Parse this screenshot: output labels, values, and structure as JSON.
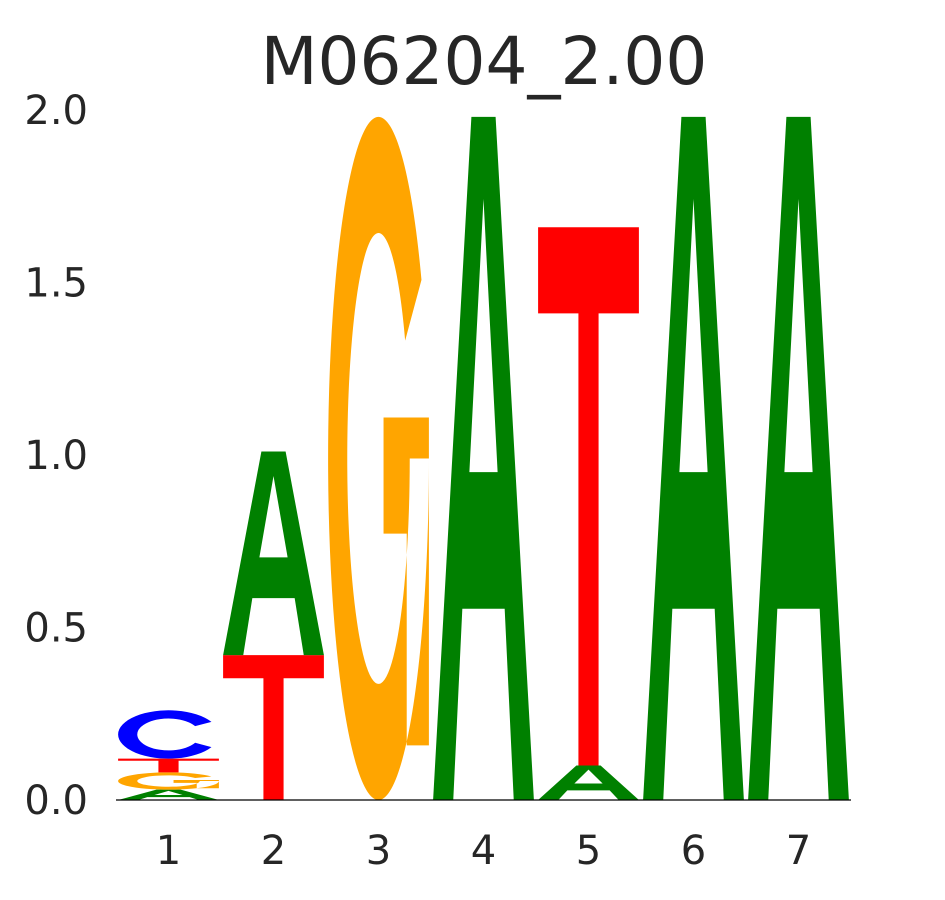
{
  "chart_data": {
    "type": "sequence-logo",
    "title": "M06204_2.00",
    "xlabel": "",
    "ylabel": "",
    "ylim": [
      0,
      2.0
    ],
    "y_ticks": [
      "0.0",
      "0.5",
      "1.0",
      "1.5",
      "2.0"
    ],
    "y_tick_values": [
      0,
      0.5,
      1.0,
      1.5,
      2.0
    ],
    "x_ticks": [
      "1",
      "2",
      "3",
      "4",
      "5",
      "6",
      "7"
    ],
    "colors": {
      "A": "#008000",
      "C": "#0000ff",
      "G": "#ffa500",
      "T": "#ff0000"
    },
    "positions": [
      {
        "position": "1",
        "stack": [
          {
            "letter": "A",
            "height": 0.03
          },
          {
            "letter": "G",
            "height": 0.05
          },
          {
            "letter": "T",
            "height": 0.04
          },
          {
            "letter": "C",
            "height": 0.14
          }
        ]
      },
      {
        "position": "2",
        "stack": [
          {
            "letter": "T",
            "height": 0.42
          },
          {
            "letter": "A",
            "height": 0.59
          }
        ]
      },
      {
        "position": "3",
        "stack": [
          {
            "letter": "G",
            "height": 1.98
          }
        ]
      },
      {
        "position": "4",
        "stack": [
          {
            "letter": "A",
            "height": 1.98
          }
        ]
      },
      {
        "position": "5",
        "stack": [
          {
            "letter": "A",
            "height": 0.1
          },
          {
            "letter": "T",
            "height": 1.56
          }
        ]
      },
      {
        "position": "6",
        "stack": [
          {
            "letter": "A",
            "height": 1.98
          }
        ]
      },
      {
        "position": "7",
        "stack": [
          {
            "letter": "A",
            "height": 1.98
          }
        ]
      }
    ]
  }
}
